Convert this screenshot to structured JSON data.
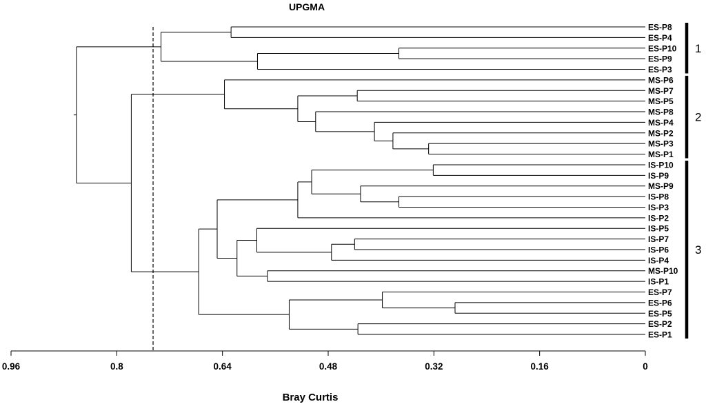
{
  "chart_data": {
    "type": "dendrogram",
    "title": "UPGMA",
    "xlabel": "Bray Curtis",
    "xlim": [
      0.96,
      0
    ],
    "ticks": [
      "0.96",
      "0.8",
      "0.64",
      "0.48",
      "0.32",
      "0.16",
      "0"
    ],
    "cutoff": 0.745,
    "leaves": [
      "ES-P8",
      "ES-P4",
      "ES-P10",
      "ES-P9",
      "ES-P3",
      "MS-P6",
      "MS-P7",
      "MS-P5",
      "MS-P8",
      "MS-P4",
      "MS-P2",
      "MS-P3",
      "MS-P1",
      "IS-P10",
      "IS-P9",
      "MS-P9",
      "IS-P8",
      "IS-P3",
      "IS-P2",
      "IS-P5",
      "IS-P7",
      "IS-P6",
      "IS-P4",
      "MS-P10",
      "IS-P1",
      "ES-P7",
      "ES-P6",
      "ES-P5",
      "ES-P2",
      "ES-P1"
    ],
    "merges": [
      {
        "a": "ES-P8",
        "b": "ES-P4",
        "height": 0.627
      },
      {
        "a": "ES-P10",
        "b": "ES-P9",
        "height": 0.373
      },
      {
        "a": "L1",
        "b": "ES-P3",
        "height": 0.587
      },
      {
        "a": "L0",
        "b": "L2",
        "height": 0.733
      },
      {
        "a": "MS-P7",
        "b": "MS-P5",
        "height": 0.436
      },
      {
        "a": "MS-P3",
        "b": "MS-P1",
        "height": 0.328
      },
      {
        "a": "MS-P2",
        "b": "L5",
        "height": 0.382
      },
      {
        "a": "MS-P4",
        "b": "L6",
        "height": 0.41
      },
      {
        "a": "MS-P8",
        "b": "L7",
        "height": 0.499
      },
      {
        "a": "L4",
        "b": "L8",
        "height": 0.526
      },
      {
        "a": "MS-P6",
        "b": "L9",
        "height": 0.637
      },
      {
        "a": "IS-P10",
        "b": "IS-P9",
        "height": 0.321
      },
      {
        "a": "IS-P8",
        "b": "IS-P3",
        "height": 0.373
      },
      {
        "a": "MS-P9",
        "b": "L12",
        "height": 0.431
      },
      {
        "a": "L11",
        "b": "L13",
        "height": 0.505
      },
      {
        "a": "L14",
        "b": "IS-P2",
        "height": 0.526
      },
      {
        "a": "IS-P7",
        "b": "IS-P6",
        "height": 0.44
      },
      {
        "a": "L16",
        "b": "IS-P4",
        "height": 0.475
      },
      {
        "a": "IS-P5",
        "b": "L17",
        "height": 0.588
      },
      {
        "a": "MS-P10",
        "b": "IS-P1",
        "height": 0.572
      },
      {
        "a": "L18",
        "b": "L19",
        "height": 0.618
      },
      {
        "a": "L15",
        "b": "L20",
        "height": 0.648
      },
      {
        "a": "ES-P6",
        "b": "ES-P5",
        "height": 0.288
      },
      {
        "a": "ES-P7",
        "b": "L22",
        "height": 0.398
      },
      {
        "a": "ES-P2",
        "b": "ES-P1",
        "height": 0.435
      },
      {
        "a": "L23",
        "b": "L24",
        "height": 0.539
      },
      {
        "a": "L21",
        "b": "L25",
        "height": 0.676
      },
      {
        "a": "L10",
        "b": "L26",
        "height": 0.778
      },
      {
        "a": "L3",
        "b": "L27",
        "height": 0.861
      }
    ],
    "groups": [
      {
        "label": "1",
        "from": 0,
        "to": 4
      },
      {
        "label": "2",
        "from": 5,
        "to": 12
      },
      {
        "label": "3",
        "from": 13,
        "to": 29
      }
    ]
  }
}
